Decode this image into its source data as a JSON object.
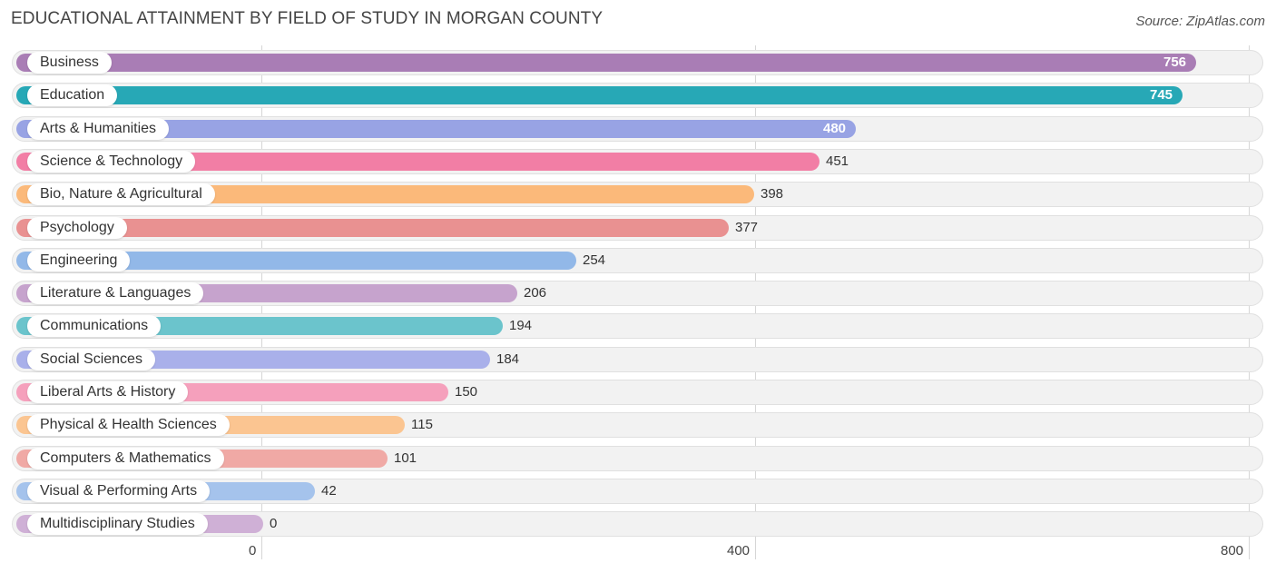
{
  "header": {
    "title": "EDUCATIONAL ATTAINMENT BY FIELD OF STUDY IN MORGAN COUNTY",
    "source": "Source: ZipAtlas.com"
  },
  "chart_data": {
    "type": "bar",
    "orientation": "horizontal",
    "title": "EDUCATIONAL ATTAINMENT BY FIELD OF STUDY IN MORGAN COUNTY",
    "xlabel": "",
    "ylabel": "",
    "xlim": [
      0,
      800
    ],
    "grid": true,
    "xticks": [
      {
        "value": 0,
        "label": "0"
      },
      {
        "value": 400,
        "label": "400"
      },
      {
        "value": 800,
        "label": "800"
      }
    ],
    "categories": [
      "Business",
      "Education",
      "Arts & Humanities",
      "Science & Technology",
      "Bio, Nature & Agricultural",
      "Psychology",
      "Engineering",
      "Literature & Languages",
      "Communications",
      "Social Sciences",
      "Liberal Arts & History",
      "Physical & Health Sciences",
      "Computers & Mathematics",
      "Visual & Performing Arts",
      "Multidisciplinary Studies"
    ],
    "values": [
      756,
      745,
      480,
      451,
      398,
      377,
      254,
      206,
      194,
      184,
      150,
      115,
      101,
      42,
      0
    ],
    "value_labels": [
      "756",
      "745",
      "480",
      "451",
      "398",
      "377",
      "254",
      "206",
      "194",
      "184",
      "150",
      "115",
      "101",
      "42",
      "0"
    ],
    "colors": [
      "#a97db5",
      "#27a8b6",
      "#98a3e4",
      "#f27ea5",
      "#fbb97a",
      "#e99191",
      "#92b8e8",
      "#c6a3cd",
      "#6bc4cc",
      "#a9b0ea",
      "#f5a0bc",
      "#fbc591",
      "#f0a9a5",
      "#a5c3ec",
      "#cfb0d6"
    ]
  }
}
